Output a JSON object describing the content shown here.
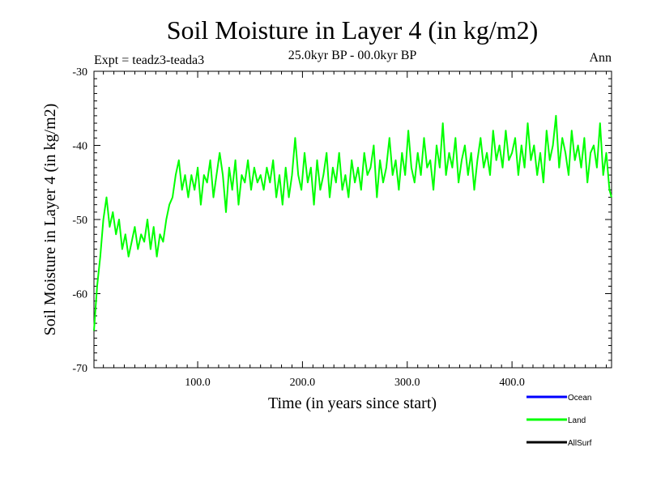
{
  "chart_data": {
    "type": "line",
    "title": "Soil Moisture in Layer 4 (in kg/m2)",
    "subtitle": "25.0kyr BP - 00.0kyr BP",
    "left_label": "Expt = teadz3-teada3",
    "right_label": "Ann",
    "xlabel": "Time (in years since start)",
    "ylabel": "Soil Moisture in Layer 4 (in kg/m2)",
    "xlim": [
      1,
      495
    ],
    "ylim": [
      -70,
      -30
    ],
    "x_ticks": [
      100,
      200,
      300,
      400
    ],
    "x_tick_labels": [
      "100.0",
      "200.0",
      "300.0",
      "400.0"
    ],
    "y_ticks": [
      -70,
      -60,
      -50,
      -40,
      -30
    ],
    "y_tick_labels": [
      "-70",
      "-60",
      "-50",
      "-40",
      "-30"
    ],
    "legend": [
      {
        "name": "Ocean",
        "color": "#0000ff"
      },
      {
        "name": "Land",
        "color": "#00ff00"
      },
      {
        "name": "AllSurf",
        "color": "#000000"
      }
    ],
    "series": [
      {
        "name": "Land",
        "color": "#00ff00",
        "x": [
          1,
          4,
          7,
          10,
          13,
          16,
          19,
          22,
          25,
          28,
          31,
          34,
          37,
          40,
          43,
          46,
          49,
          52,
          55,
          58,
          61,
          64,
          67,
          70,
          73,
          76,
          79,
          82,
          85,
          88,
          91,
          94,
          97,
          100,
          103,
          106,
          109,
          112,
          115,
          118,
          121,
          124,
          127,
          130,
          133,
          136,
          139,
          142,
          145,
          148,
          151,
          154,
          157,
          160,
          163,
          166,
          169,
          172,
          175,
          178,
          181,
          184,
          187,
          190,
          193,
          196,
          199,
          202,
          205,
          208,
          211,
          214,
          217,
          220,
          223,
          226,
          229,
          232,
          235,
          238,
          241,
          244,
          247,
          250,
          253,
          256,
          259,
          262,
          265,
          268,
          271,
          274,
          277,
          280,
          283,
          286,
          289,
          292,
          295,
          298,
          301,
          304,
          307,
          310,
          313,
          316,
          319,
          322,
          325,
          328,
          331,
          334,
          337,
          340,
          343,
          346,
          349,
          352,
          355,
          358,
          361,
          364,
          367,
          370,
          373,
          376,
          379,
          382,
          385,
          388,
          391,
          394,
          397,
          400,
          403,
          406,
          409,
          412,
          415,
          418,
          421,
          424,
          427,
          430,
          433,
          436,
          439,
          442,
          445,
          448,
          451,
          454,
          457,
          460,
          463,
          466,
          469,
          472,
          475,
          478,
          481,
          484,
          487,
          490,
          493,
          495
        ],
        "values": [
          -65,
          -59,
          -55,
          -50,
          -47,
          -51,
          -49,
          -52,
          -50,
          -54,
          -52,
          -55,
          -53,
          -51,
          -54,
          -52,
          -53,
          -50,
          -54,
          -51,
          -55,
          -52,
          -53,
          -50,
          -48,
          -47,
          -44,
          -42,
          -46,
          -44,
          -47,
          -44,
          -46,
          -43,
          -48,
          -44,
          -45,
          -42,
          -47,
          -44,
          -41,
          -44,
          -49,
          -43,
          -46,
          -42,
          -48,
          -44,
          -45,
          -42,
          -46,
          -43,
          -45,
          -44,
          -46,
          -43,
          -45,
          -42,
          -47,
          -44,
          -48,
          -43,
          -47,
          -44,
          -39,
          -44,
          -46,
          -41,
          -45,
          -43,
          -48,
          -42,
          -46,
          -44,
          -41,
          -47,
          -43,
          -45,
          -41,
          -46,
          -44,
          -47,
          -42,
          -45,
          -43,
          -46,
          -41,
          -44,
          -43,
          -40,
          -47,
          -42,
          -45,
          -43,
          -39,
          -44,
          -42,
          -46,
          -41,
          -44,
          -38,
          -43,
          -45,
          -41,
          -44,
          -39,
          -43,
          -42,
          -46,
          -40,
          -43,
          -37,
          -44,
          -41,
          -43,
          -39,
          -45,
          -42,
          -40,
          -44,
          -41,
          -46,
          -42,
          -39,
          -43,
          -41,
          -44,
          -38,
          -42,
          -40,
          -43,
          -38,
          -42,
          -41,
          -39,
          -44,
          -40,
          -43,
          -37,
          -42,
          -40,
          -44,
          -41,
          -45,
          -38,
          -42,
          -40,
          -36,
          -43,
          -39,
          -41,
          -44,
          -38,
          -42,
          -40,
          -43,
          -39,
          -45,
          -41,
          -40,
          -43,
          -37,
          -44,
          -41,
          -46,
          -47
        ]
      }
    ]
  }
}
